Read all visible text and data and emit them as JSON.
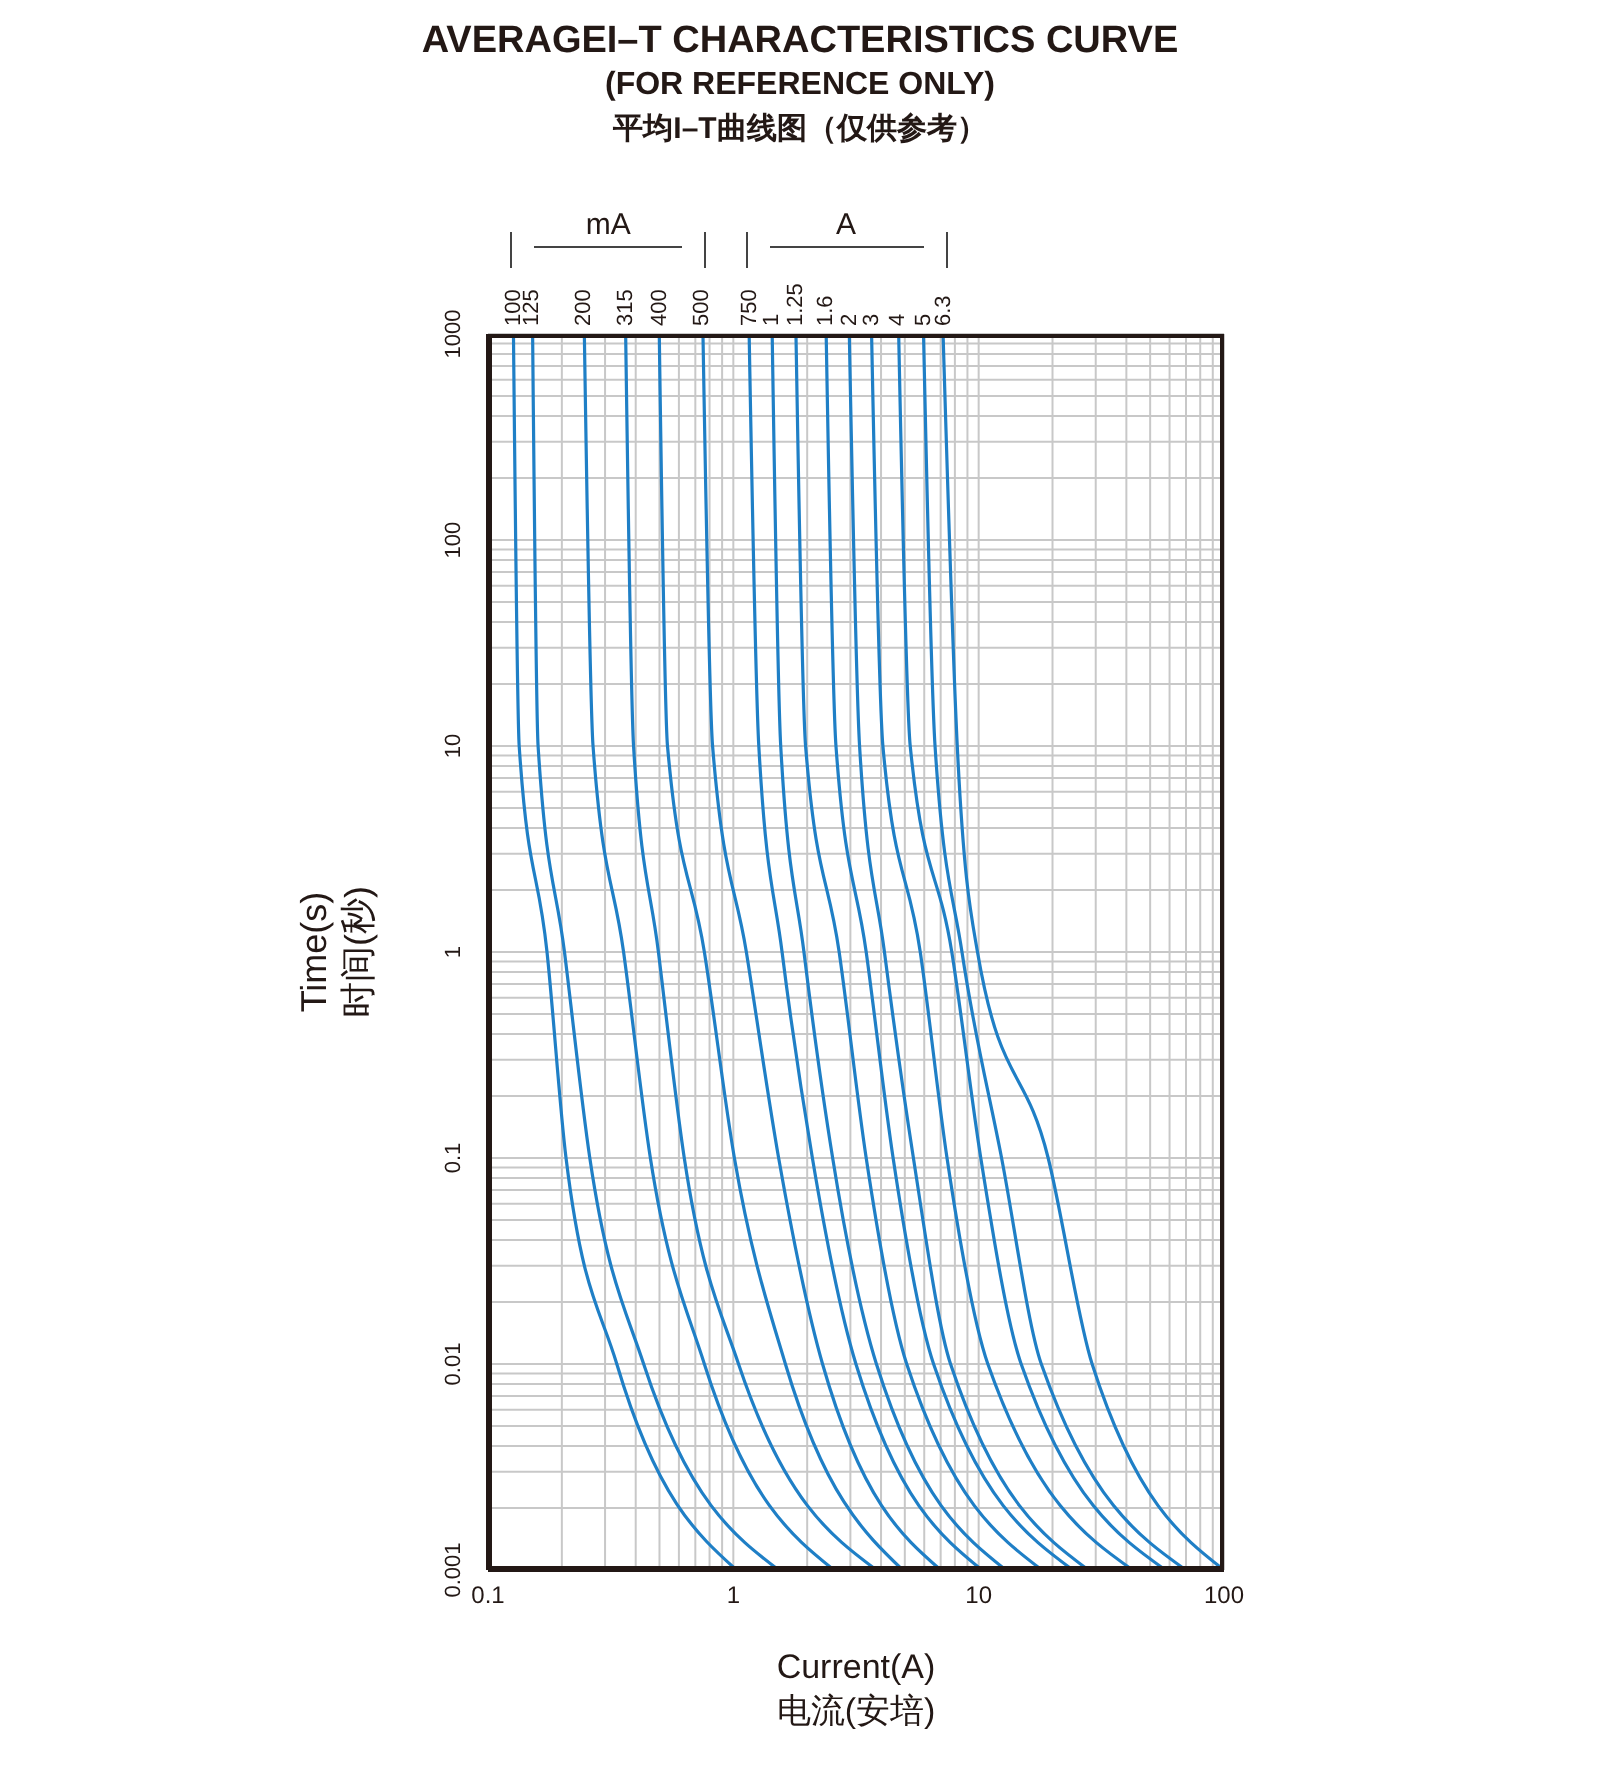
{
  "chart_data": {
    "type": "line",
    "title": "AVERAGEI–T CHARACTERISTICS CURVE",
    "subtitle": "(FOR REFERENCE ONLY)\n平均I–T曲线图（仅供参考）",
    "xlabel": "Current(A)\n电流(安培)",
    "ylabel": "Time(s)\n时间(秒)",
    "annotations": [
      "mA",
      "A"
    ],
    "log": "xy",
    "grid": true,
    "marker": "none",
    "line_style": "solid",
    "xlim": [
      0.1,
      100
    ],
    "ylim": [
      0.001,
      1000
    ],
    "xticks": [
      0.1,
      {
        "value": 0.2,
        "label": null
      },
      {
        "value": 0.3,
        "label": null
      },
      {
        "value": 0.4,
        "label": null
      },
      {
        "value": 0.5,
        "label": null
      },
      {
        "value": 0.6,
        "label": null
      },
      {
        "value": 0.7,
        "label": null
      },
      {
        "value": 0.8,
        "label": null
      },
      {
        "value": 0.9,
        "label": null
      },
      1,
      {
        "value": 2,
        "label": null
      },
      {
        "value": 3,
        "label": null
      },
      {
        "value": 4,
        "label": null
      },
      {
        "value": 5,
        "label": null
      },
      {
        "value": 6,
        "label": null
      },
      {
        "value": 7,
        "label": null
      },
      {
        "value": 8,
        "label": null
      },
      {
        "value": 9,
        "label": null
      },
      10,
      {
        "value": 20,
        "label": null
      },
      {
        "value": 30,
        "label": null
      },
      {
        "value": 40,
        "label": null
      },
      {
        "value": 50,
        "label": null
      },
      {
        "value": 60,
        "label": null
      },
      {
        "value": 70,
        "label": null
      },
      {
        "value": 80,
        "label": null
      },
      {
        "value": 90,
        "label": null
      },
      100
    ],
    "yticks": [
      0.001,
      {
        "value": 0.002,
        "label": null
      },
      {
        "value": 0.003,
        "label": null
      },
      {
        "value": 0.004,
        "label": null
      },
      {
        "value": 0.005,
        "label": null
      },
      {
        "value": 0.006,
        "label": null
      },
      {
        "value": 0.007,
        "label": null
      },
      {
        "value": 0.008,
        "label": null
      },
      {
        "value": 0.009,
        "label": null
      },
      0.01,
      {
        "value": 0.02,
        "label": null
      },
      {
        "value": 0.03,
        "label": null
      },
      {
        "value": 0.04,
        "label": null
      },
      {
        "value": 0.05,
        "label": null
      },
      {
        "value": 0.06,
        "label": null
      },
      {
        "value": 0.07,
        "label": null
      },
      {
        "value": 0.08,
        "label": null
      },
      {
        "value": 0.09,
        "label": null
      },
      0.1,
      {
        "value": 0.2,
        "label": null
      },
      {
        "value": 0.3,
        "label": null
      },
      {
        "value": 0.4,
        "label": null
      },
      {
        "value": 0.5,
        "label": null
      },
      {
        "value": 0.6,
        "label": null
      },
      {
        "value": 0.7,
        "label": null
      },
      {
        "value": 0.8,
        "label": null
      },
      {
        "value": 0.9,
        "label": null
      },
      1,
      {
        "value": 2,
        "label": null
      },
      {
        "value": 3,
        "label": null
      },
      {
        "value": 4,
        "label": null
      },
      {
        "value": 5,
        "label": null
      },
      {
        "value": 6,
        "label": null
      },
      {
        "value": 7,
        "label": null
      },
      {
        "value": 8,
        "label": null
      },
      {
        "value": 9,
        "label": null
      },
      10,
      {
        "value": 20,
        "label": null
      },
      {
        "value": 30,
        "label": null
      },
      {
        "value": 40,
        "label": null
      },
      {
        "value": 50,
        "label": null
      },
      {
        "value": 60,
        "label": null
      },
      {
        "value": 70,
        "label": null
      },
      {
        "value": 80,
        "label": null
      },
      {
        "value": 90,
        "label": null
      },
      100,
      {
        "value": 200,
        "label": null
      },
      {
        "value": 300,
        "label": null
      },
      {
        "value": 400,
        "label": null
      },
      {
        "value": 500,
        "label": null
      },
      {
        "value": 600,
        "label": null
      },
      {
        "value": 700,
        "label": null
      },
      {
        "value": 800,
        "label": null
      },
      {
        "value": 900,
        "label": null
      },
      1000
    ],
    "series": [
      {
        "name": "100",
        "color": "#1f7fc6",
        "x": [
          0.127,
          0.134,
          0.174,
          0.208,
          0.335,
          1.03
        ],
        "values": [
          1000,
          10,
          1,
          0.1,
          0.01,
          0.001
        ]
      },
      {
        "name": "125",
        "color": "#1f7fc6",
        "x": [
          0.152,
          0.16,
          0.205,
          0.26,
          0.431,
          1.53
        ],
        "values": [
          1000,
          10,
          1,
          0.1,
          0.01,
          0.001
        ]
      },
      {
        "name": "200",
        "color": "#1f7fc6",
        "x": [
          0.247,
          0.268,
          0.357,
          0.459,
          0.762,
          2.57
        ],
        "values": [
          1000,
          10,
          1,
          0.1,
          0.01,
          0.001
        ]
      },
      {
        "name": "315",
        "color": "#1f7fc6",
        "x": [
          0.364,
          0.392,
          0.495,
          0.631,
          1.05,
          3.83
        ],
        "values": [
          1000,
          10,
          1,
          0.1,
          0.01,
          0.001
        ]
      },
      {
        "name": "400",
        "color": "#1f7fc6",
        "x": [
          0.499,
          0.539,
          0.762,
          1.01,
          1.63,
          4.9
        ],
        "values": [
          1000,
          10,
          1,
          0.1,
          0.01,
          0.001
        ]
      },
      {
        "name": "500",
        "color": "#1f7fc6",
        "x": [
          0.752,
          0.823,
          1.13,
          1.53,
          2.31,
          7.0
        ],
        "values": [
          1000,
          10,
          1,
          0.1,
          0.01,
          0.001
        ]
      },
      {
        "name": "750",
        "color": "#1f7fc6",
        "x": [
          1.16,
          1.27,
          1.58,
          2.1,
          3.16,
          10.3
        ],
        "values": [
          1000,
          10,
          1,
          0.1,
          0.01,
          0.001
        ]
      },
      {
        "name": "1",
        "color": "#1f7fc6",
        "x": [
          1.44,
          1.56,
          1.94,
          2.54,
          3.83,
          12.9
        ],
        "values": [
          1000,
          10,
          1,
          0.1,
          0.01,
          0.001
        ]
      },
      {
        "name": "1.25",
        "color": "#1f7fc6",
        "x": [
          1.8,
          1.97,
          2.7,
          3.48,
          5.09,
          18.1
        ],
        "values": [
          1000,
          10,
          1,
          0.1,
          0.01,
          0.001
        ]
      },
      {
        "name": "1.6",
        "color": "#1f7fc6",
        "x": [
          2.39,
          2.62,
          3.48,
          4.48,
          6.55,
          24.2
        ],
        "values": [
          1000,
          10,
          1,
          0.1,
          0.01,
          0.001
        ]
      },
      {
        "name": "2",
        "color": "#1f7fc6",
        "x": [
          2.97,
          3.27,
          4.13,
          5.42,
          7.68,
          28.0
        ],
        "values": [
          1000,
          10,
          1,
          0.1,
          0.01,
          0.001
        ]
      },
      {
        "name": "3",
        "color": "#1f7fc6",
        "x": [
          3.66,
          4.07,
          5.78,
          7.43,
          10.9,
          42.4
        ],
        "values": [
          1000,
          10,
          1,
          0.1,
          0.01,
          0.001
        ]
      },
      {
        "name": "4",
        "color": "#1f7fc6",
        "x": [
          4.72,
          5.26,
          7.77,
          10.2,
          14.9,
          57.7
        ],
        "values": [
          1000,
          10,
          1,
          0.1,
          0.01,
          0.001
        ]
      },
      {
        "name": "5",
        "color": "#1f7fc6",
        "x": [
          5.96,
          6.64,
          8.55,
          12.4,
          18.0,
          69.9
        ],
        "values": [
          1000,
          10,
          1,
          0.1,
          0.01,
          0.001
        ]
      },
      {
        "name": "6.3",
        "color": "#1f7fc6",
        "x": [
          7.16,
          8.18,
          9.89,
          19.2,
          29.0,
          100
        ],
        "values": [
          1000,
          10,
          1,
          0.1,
          0.01,
          0.001
        ]
      }
    ]
  }
}
